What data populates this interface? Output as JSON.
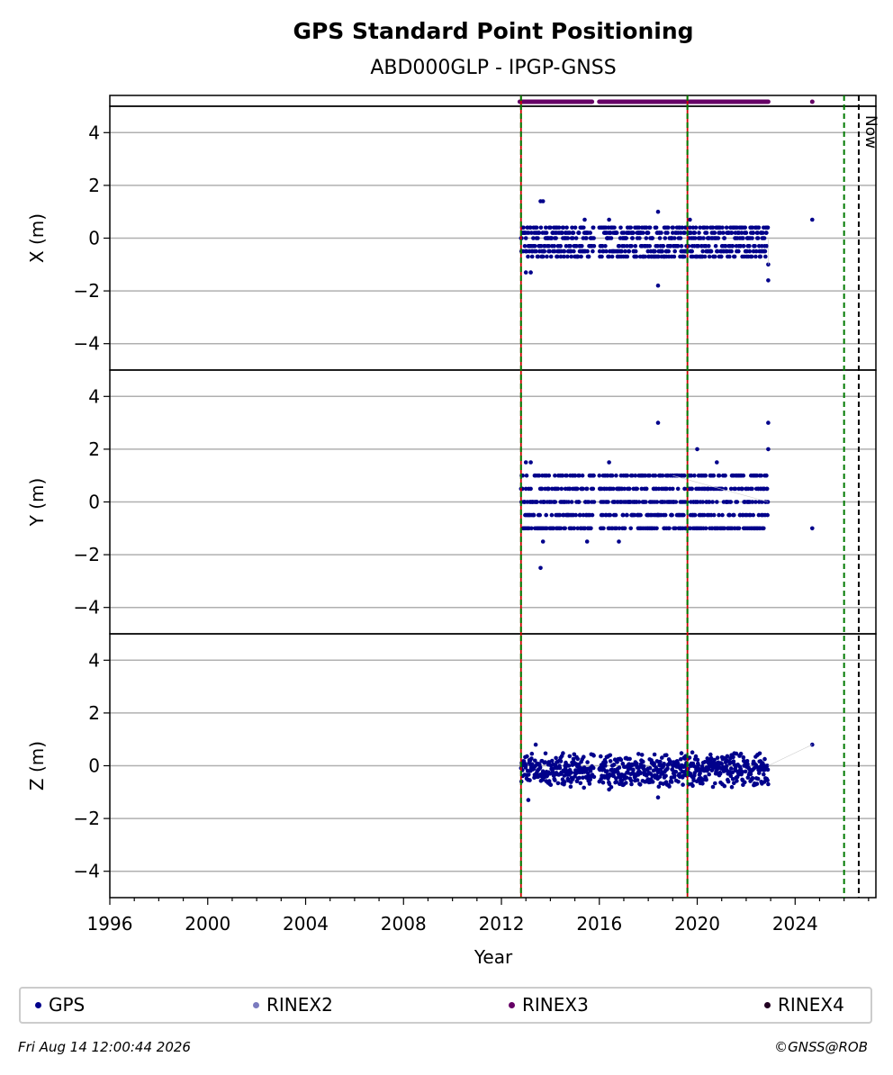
{
  "chart_data": {
    "type": "scatter",
    "title": "GPS Standard Point Positioning",
    "subtitle": "ABD000GLP - IPGP-GNSS",
    "xlabel": "Year",
    "xlim": [
      1996,
      2027.3
    ],
    "x_ticks": [
      "1996",
      "2000",
      "2004",
      "2008",
      "2012",
      "2016",
      "2020",
      "2024"
    ],
    "grid": "horizontal",
    "now_label": "Now",
    "now_year": 2026.6,
    "legend_placement": "bottom",
    "vertical_markers": [
      {
        "year": 2012.8,
        "style": "red-solid-green-dashed"
      },
      {
        "year": 2019.6,
        "style": "red-solid-green-dashed"
      },
      {
        "year": 2026.0,
        "style": "green-dashed"
      }
    ],
    "rinex3_availability": {
      "color": "#660066",
      "segments": [
        [
          2012.75,
          2015.7
        ],
        [
          2016.0,
          2019.55
        ],
        [
          2019.65,
          2022.9
        ]
      ],
      "points": [
        2024.7
      ]
    },
    "panels": [
      {
        "ylabel": "X (m)",
        "ylim": [
          -5,
          5
        ],
        "y_ticks": [
          "−4",
          "−2",
          "0",
          "2",
          "4"
        ],
        "y_tick_values": [
          -4,
          -2,
          0,
          2,
          4
        ],
        "series": {
          "main_range": [
            -1.0,
            0.4
          ],
          "levels": [
            -0.7,
            -0.5,
            -0.3,
            0.0,
            0.2,
            0.4
          ],
          "outliers": [
            [
              2013.6,
              1.4
            ],
            [
              2013.7,
              1.4
            ],
            [
              2013.0,
              -1.3
            ],
            [
              2013.2,
              -1.3
            ],
            [
              2018.4,
              1.0
            ],
            [
              2018.4,
              -1.8
            ],
            [
              2015.4,
              0.7
            ],
            [
              2016.4,
              0.7
            ],
            [
              2019.7,
              0.7
            ],
            [
              2022.9,
              -1.6
            ],
            [
              2024.7,
              0.7
            ],
            [
              2022.9,
              -1.0
            ]
          ]
        }
      },
      {
        "ylabel": "Y (m)",
        "ylim": [
          -5,
          5
        ],
        "y_ticks": [
          "−4",
          "−2",
          "0",
          "2",
          "4"
        ],
        "y_tick_values": [
          -4,
          -2,
          0,
          2,
          4
        ],
        "series": {
          "main_range": [
            -1.0,
            1.0
          ],
          "levels": [
            -1.0,
            -0.5,
            0.0,
            0.5,
            1.0
          ],
          "outliers": [
            [
              2013.6,
              -2.5
            ],
            [
              2013.7,
              -1.5
            ],
            [
              2013.0,
              1.5
            ],
            [
              2013.2,
              1.5
            ],
            [
              2018.4,
              3.0
            ],
            [
              2016.4,
              1.5
            ],
            [
              2016.8,
              -1.5
            ],
            [
              2015.5,
              -1.5
            ],
            [
              2020.0,
              2.0
            ],
            [
              2020.8,
              1.5
            ],
            [
              2022.9,
              3.0
            ],
            [
              2022.9,
              2.0
            ],
            [
              2024.7,
              -1.0
            ],
            [
              2019.0,
              1.0
            ]
          ]
        }
      },
      {
        "ylabel": "Z (m)",
        "ylim": [
          -5,
          5
        ],
        "y_ticks": [
          "−4",
          "−2",
          "0",
          "2",
          "4"
        ],
        "y_tick_values": [
          -4,
          -2,
          0,
          2,
          4
        ],
        "series": {
          "main_range": [
            -0.7,
            0.35
          ],
          "levels": [],
          "outliers": [
            [
              2013.4,
              0.8
            ],
            [
              2013.1,
              -1.3
            ],
            [
              2018.4,
              -1.2
            ],
            [
              2016.4,
              -0.9
            ],
            [
              2016.0,
              -0.6
            ],
            [
              2022.9,
              -0.7
            ],
            [
              2024.7,
              0.8
            ]
          ]
        }
      }
    ],
    "gps_data_spans": [
      [
        2012.8,
        2015.8
      ],
      [
        2016.0,
        2019.6
      ],
      [
        2019.6,
        2022.9
      ]
    ],
    "series_colors": {
      "GPS": "#00008b",
      "RINEX2": "#7b7bbf",
      "RINEX3": "#660066",
      "RINEX4": "#220022"
    }
  },
  "legend": {
    "items": [
      {
        "label": "GPS",
        "color": "#00008b"
      },
      {
        "label": "RINEX2",
        "color": "#7b7bbf"
      },
      {
        "label": "RINEX3",
        "color": "#660066"
      },
      {
        "label": "RINEX4",
        "color": "#220022"
      }
    ]
  },
  "footer": {
    "timestamp": "Fri Aug 14 12:00:44 2026",
    "credit": "©GNSS@ROB"
  }
}
